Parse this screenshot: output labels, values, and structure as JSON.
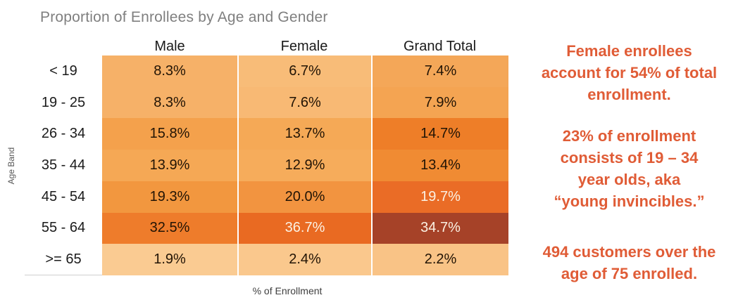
{
  "title": "Proportion of Enrollees by Age and Gender",
  "axes": {
    "y_label": "Age Band",
    "x_label": "% of Enrollment"
  },
  "colors": {
    "title_text": "#7F7F7F",
    "annotation_text": "#E05C36",
    "dark_cell_text": "#221405",
    "light_cell_text": "#FBF1E3",
    "axis_rule": "#CFCFCF"
  },
  "table": {
    "columns": [
      "Male",
      "Female",
      "Grand Total"
    ],
    "rows": [
      {
        "label": "< 19",
        "cells": [
          {
            "text": "8.3%",
            "bg": "#F6B168",
            "fg": "#221405"
          },
          {
            "text": "6.7%",
            "bg": "#F8BC78",
            "fg": "#221405"
          },
          {
            "text": "7.4%",
            "bg": "#F4A758",
            "fg": "#221405"
          }
        ]
      },
      {
        "label": "19 - 25",
        "cells": [
          {
            "text": "8.3%",
            "bg": "#F6B168",
            "fg": "#221405"
          },
          {
            "text": "7.6%",
            "bg": "#F8B974",
            "fg": "#221405"
          },
          {
            "text": "7.9%",
            "bg": "#F4A452",
            "fg": "#221405"
          }
        ]
      },
      {
        "label": "26 - 34",
        "cells": [
          {
            "text": "15.8%",
            "bg": "#F4A14C",
            "fg": "#221405"
          },
          {
            "text": "13.7%",
            "bg": "#F5A956",
            "fg": "#221405"
          },
          {
            "text": "14.7%",
            "bg": "#EE7E28",
            "fg": "#221405"
          }
        ]
      },
      {
        "label": "35 - 44",
        "cells": [
          {
            "text": "13.9%",
            "bg": "#F5A855",
            "fg": "#221405"
          },
          {
            "text": "12.9%",
            "bg": "#F6AC5B",
            "fg": "#221405"
          },
          {
            "text": "13.4%",
            "bg": "#F08B33",
            "fg": "#221405"
          }
        ]
      },
      {
        "label": "45 - 54",
        "cells": [
          {
            "text": "19.3%",
            "bg": "#F2973F",
            "fg": "#221405"
          },
          {
            "text": "20.0%",
            "bg": "#F29440",
            "fg": "#221405"
          },
          {
            "text": "19.7%",
            "bg": "#EA6C26",
            "fg": "#FBF1E3"
          }
        ]
      },
      {
        "label": "55 - 64",
        "cells": [
          {
            "text": "32.5%",
            "bg": "#EE7C2B",
            "fg": "#221405"
          },
          {
            "text": "36.7%",
            "bg": "#E96A22",
            "fg": "#FBF1E3"
          },
          {
            "text": "34.7%",
            "bg": "#A64228",
            "fg": "#FBF1E3"
          }
        ]
      },
      {
        "label": ">= 65",
        "cells": [
          {
            "text": "1.9%",
            "bg": "#FACB92",
            "fg": "#221405"
          },
          {
            "text": "2.4%",
            "bg": "#FAC88D",
            "fg": "#221405"
          },
          {
            "text": "2.2%",
            "bg": "#F9C386",
            "fg": "#221405"
          }
        ]
      }
    ]
  },
  "annotations": [
    {
      "lines": [
        "Female enrollees",
        "account for 54% of total",
        "enrollment."
      ]
    },
    {
      "lines": [
        "23% of enrollment",
        "consists of 19 – 34",
        "year olds, aka",
        "“young invincibles.”"
      ]
    },
    {
      "lines": [
        "494 customers over the",
        "age of 75 enrolled."
      ]
    }
  ],
  "chart_data": {
    "type": "heatmap",
    "title": "Proportion of Enrollees by Age and Gender",
    "categories": [
      "< 19",
      "19 - 25",
      "26 - 34",
      "35 - 44",
      "45 - 54",
      "55 - 64",
      ">= 65"
    ],
    "series": [
      {
        "name": "Male",
        "values": [
          8.3,
          8.3,
          15.8,
          13.9,
          19.3,
          32.5,
          1.9
        ]
      },
      {
        "name": "Female",
        "values": [
          6.7,
          7.6,
          13.7,
          12.9,
          20.0,
          36.7,
          2.4
        ]
      },
      {
        "name": "Grand Total",
        "values": [
          7.4,
          7.9,
          14.7,
          13.4,
          19.7,
          34.7,
          2.2
        ]
      }
    ],
    "value_format": "percent",
    "xlabel": "% of Enrollment",
    "ylabel": "Age Band",
    "legend": false,
    "grid": false,
    "color_scale": [
      "#FACB92",
      "#A64228"
    ]
  }
}
